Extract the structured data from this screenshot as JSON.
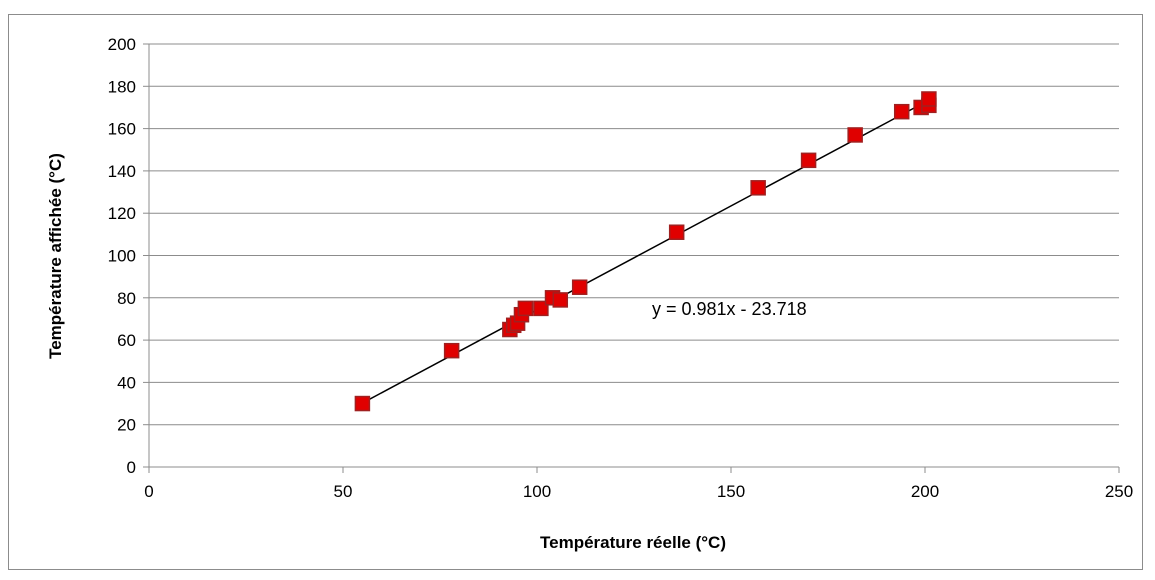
{
  "chart_data": {
    "type": "scatter",
    "xlabel": "Température réelle (°C)",
    "ylabel": "Température affichée (°C)",
    "xlim": [
      0,
      250
    ],
    "ylim": [
      0,
      200
    ],
    "xticks": [
      0,
      50,
      100,
      150,
      200,
      250
    ],
    "yticks": [
      0,
      20,
      40,
      60,
      80,
      100,
      120,
      140,
      160,
      180,
      200
    ],
    "grid": "horizontal",
    "legend": "none",
    "series": [
      {
        "marker": "square",
        "color": "#e00000",
        "x": [
          55,
          78,
          93,
          94,
          95,
          96,
          97,
          101,
          104,
          106,
          111,
          136,
          157,
          170,
          182,
          194,
          199,
          201,
          201
        ],
        "y": [
          30,
          55,
          65,
          67,
          68,
          72,
          75,
          75,
          80,
          79,
          85,
          111,
          132,
          145,
          157,
          168,
          170,
          171,
          174
        ]
      }
    ],
    "trendline": {
      "type": "linear",
      "slope": 0.981,
      "intercept": -23.718,
      "x_range": [
        55,
        201
      ],
      "color": "#000000",
      "equation_text": "y = 0.981x - 23.718"
    }
  }
}
